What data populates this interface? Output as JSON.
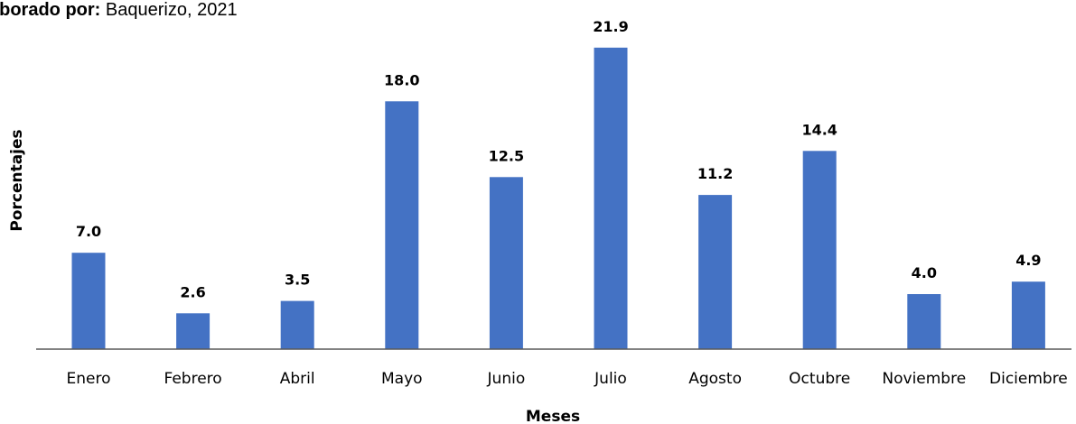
{
  "caption": {
    "prefix": "aborado por:",
    "source": " Baquerizo, 2021"
  },
  "chart_data": {
    "type": "bar",
    "categories": [
      "Enero",
      "Febrero",
      "Abril",
      "Mayo",
      "Junio",
      "Julio",
      "Agosto",
      "Octubre",
      "Noviembre",
      "Diciembre"
    ],
    "values": [
      7.0,
      2.6,
      3.5,
      18.0,
      12.5,
      21.9,
      11.2,
      14.4,
      4.0,
      4.9
    ],
    "data_labels": [
      "7.0",
      "2.6",
      "3.5",
      "18.0",
      "12.5",
      "21.9",
      "11.2",
      "14.4",
      "4.0",
      "4.9"
    ],
    "title": "",
    "xlabel": "Meses",
    "ylabel": "Porcentajes",
    "ylim": [
      0,
      22
    ],
    "grid": false,
    "bar_color": "#4472C4"
  }
}
